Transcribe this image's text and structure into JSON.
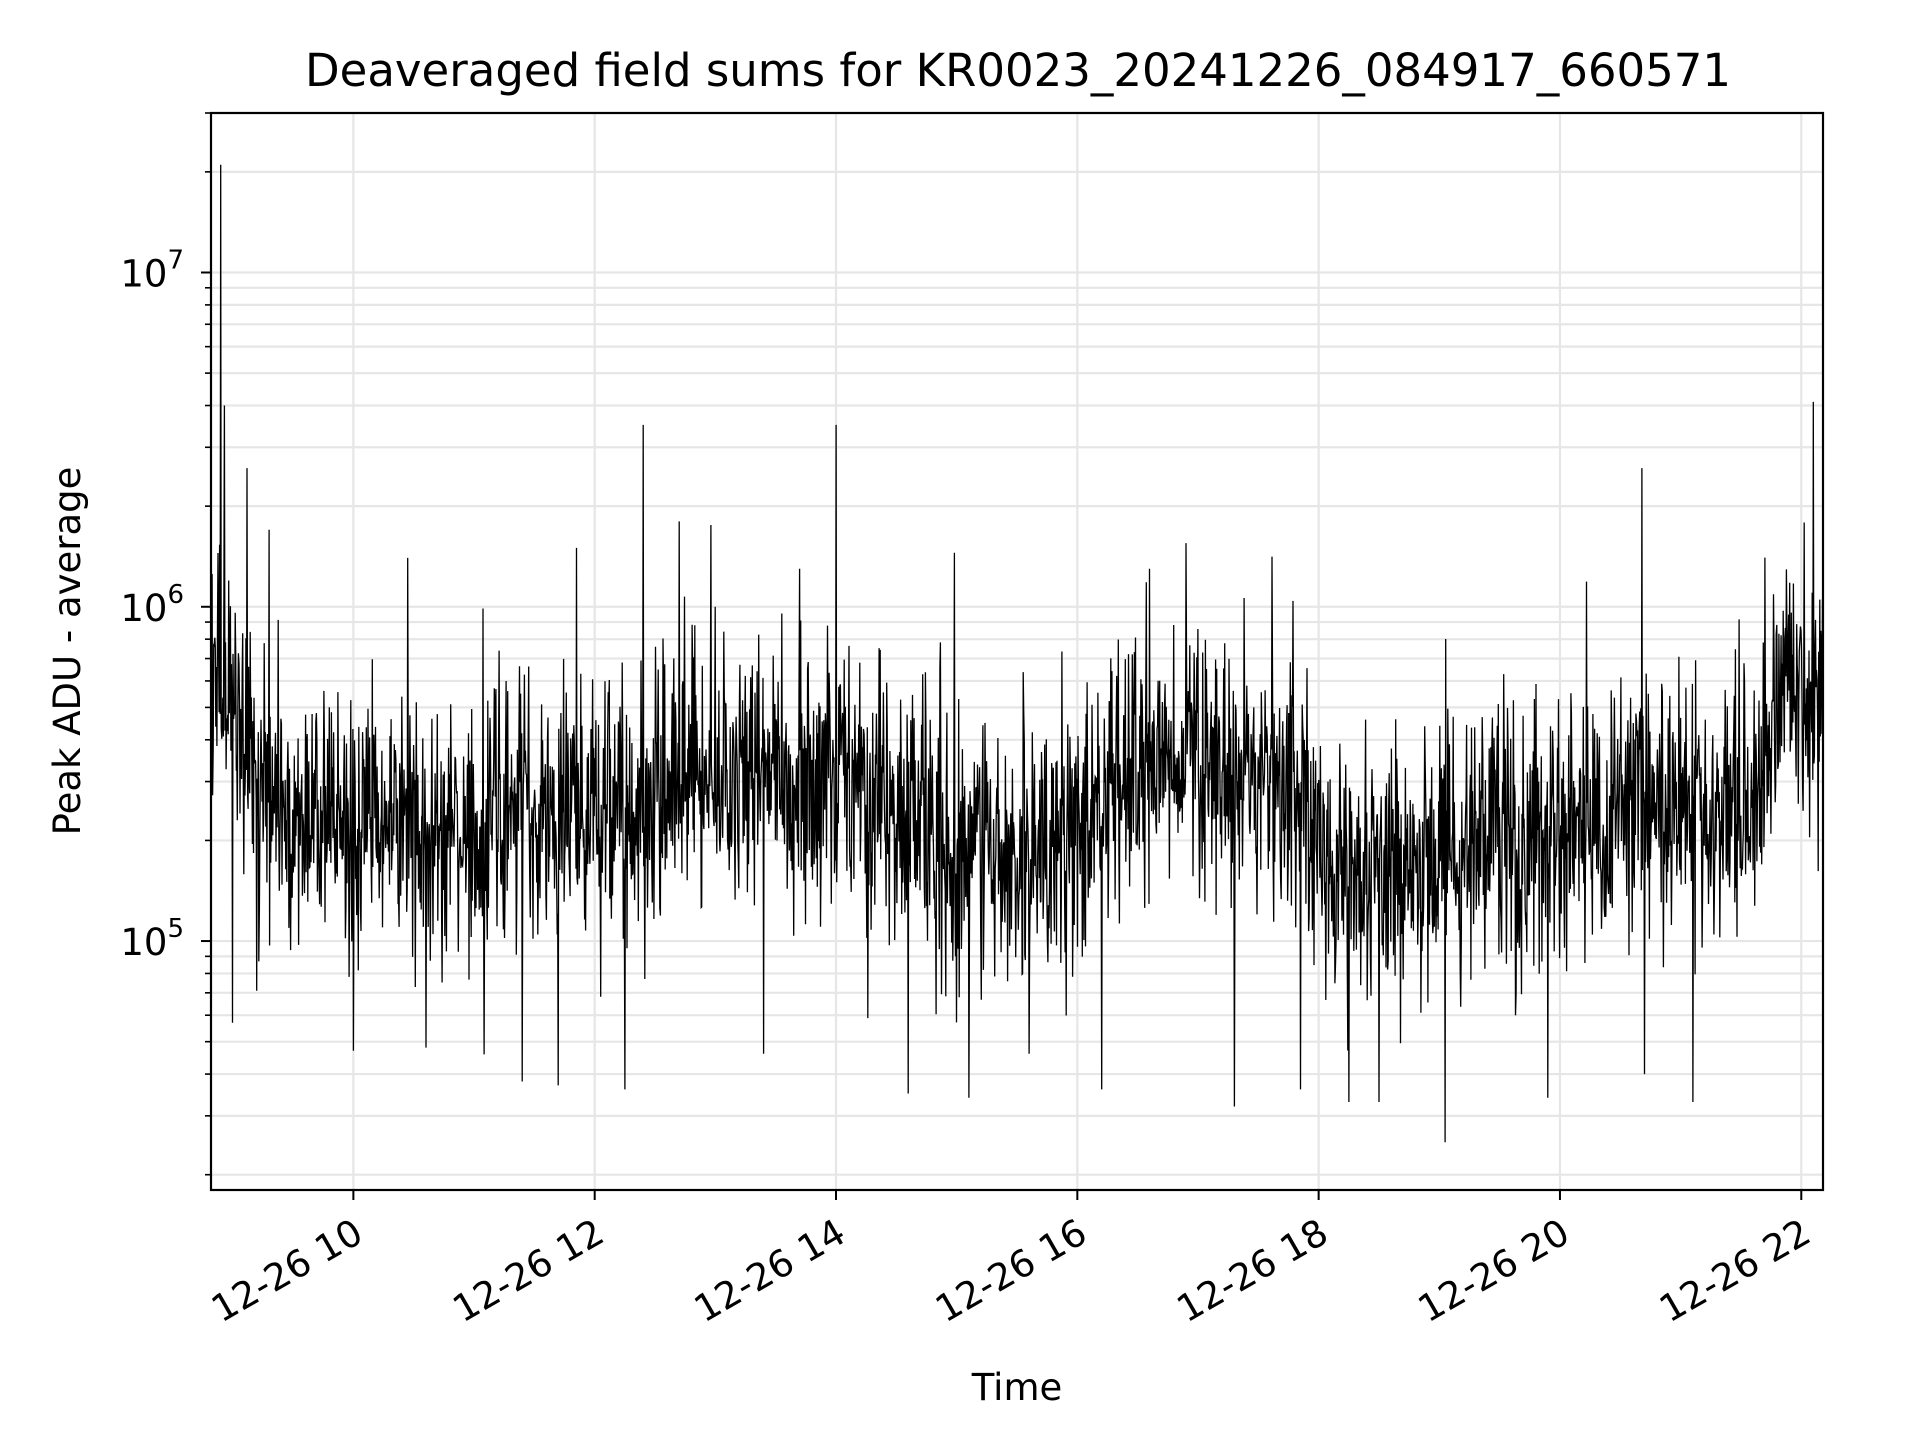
{
  "chart_data": {
    "type": "line",
    "title": "Deaveraged field sums for KR0023_20241226_084917_660571",
    "xlabel": "Time",
    "ylabel": "Peak ADU - average",
    "yscale": "log",
    "ylim": [
      18000,
      30000000
    ],
    "xlim_hours": [
      8.82,
      22.18
    ],
    "x_ticks": [
      {
        "hour": 10,
        "label": "12-26 10"
      },
      {
        "hour": 12,
        "label": "12-26 12"
      },
      {
        "hour": 14,
        "label": "12-26 14"
      },
      {
        "hour": 16,
        "label": "12-26 16"
      },
      {
        "hour": 18,
        "label": "12-26 18"
      },
      {
        "hour": 20,
        "label": "12-26 20"
      },
      {
        "hour": 22,
        "label": "12-26 22"
      }
    ],
    "y_ticks": [
      {
        "value": 100000,
        "base": "10",
        "exp": "5"
      },
      {
        "value": 1000000,
        "base": "10",
        "exp": "6"
      },
      {
        "value": 10000000,
        "base": "10",
        "exp": "7"
      }
    ],
    "grid": true,
    "line_color": "#000000",
    "grid_color": "#e6e6e6",
    "series": [
      {
        "name": "field sums",
        "baseline": [
          [
            8.82,
            600000
          ],
          [
            9.05,
            500000
          ],
          [
            9.35,
            240000
          ],
          [
            10.0,
            230000
          ],
          [
            11.0,
            235000
          ],
          [
            12.0,
            245000
          ],
          [
            12.5,
            265000
          ],
          [
            13.5,
            330000
          ],
          [
            14.0,
            320000
          ],
          [
            14.8,
            200000
          ],
          [
            15.5,
            180000
          ],
          [
            16.0,
            200000
          ],
          [
            16.5,
            310000
          ],
          [
            17.0,
            330000
          ],
          [
            17.9,
            280000
          ],
          [
            18.1,
            150000
          ],
          [
            19.0,
            170000
          ],
          [
            20.0,
            220000
          ],
          [
            21.0,
            250000
          ],
          [
            21.65,
            240000
          ],
          [
            21.75,
            520000
          ],
          [
            22.18,
            620000
          ]
        ],
        "spikes": [
          [
            8.9,
            21000000
          ],
          [
            8.93,
            4000000
          ],
          [
            9.12,
            2600000
          ],
          [
            9.3,
            1700000
          ],
          [
            10.45,
            1400000
          ],
          [
            11.85,
            1500000
          ],
          [
            12.4,
            3500000
          ],
          [
            12.7,
            1800000
          ],
          [
            13.0,
            1000000
          ],
          [
            13.7,
            1300000
          ],
          [
            14.0,
            3500000
          ],
          [
            14.98,
            1450000
          ],
          [
            16.6,
            1300000
          ],
          [
            16.9,
            1550000
          ],
          [
            20.68,
            2600000
          ],
          [
            22.1,
            4100000
          ]
        ],
        "dips": [
          [
            9.0,
            57000
          ],
          [
            9.2,
            71000
          ],
          [
            10.0,
            47000
          ],
          [
            10.6,
            48000
          ],
          [
            11.4,
            38000
          ],
          [
            11.7,
            37000
          ],
          [
            12.25,
            36000
          ],
          [
            13.4,
            46000
          ],
          [
            14.6,
            35000
          ],
          [
            15.1,
            34000
          ],
          [
            15.6,
            46000
          ],
          [
            16.2,
            36000
          ],
          [
            17.3,
            32000
          ],
          [
            17.85,
            36000
          ],
          [
            18.25,
            33000
          ],
          [
            18.5,
            33000
          ],
          [
            19.05,
            25000
          ],
          [
            19.9,
            34000
          ],
          [
            20.7,
            40000
          ],
          [
            21.1,
            33000
          ]
        ],
        "n_points": 3000,
        "seed": 23
      }
    ]
  }
}
